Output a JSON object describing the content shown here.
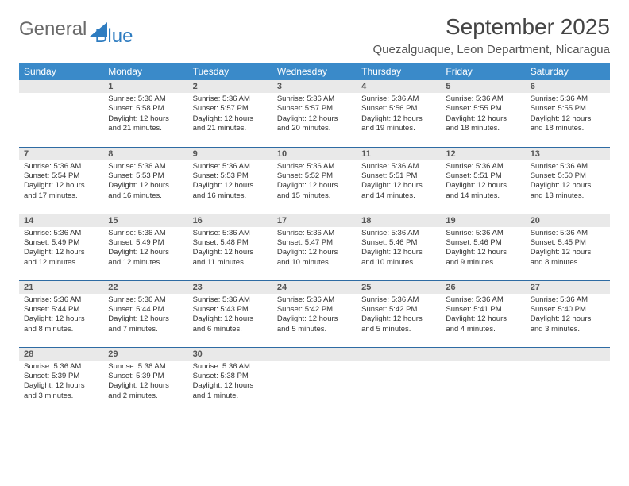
{
  "logo": {
    "text1": "General",
    "text2": "Blue"
  },
  "title": "September 2025",
  "location": "Quezalguaque, Leon Department, Nicaragua",
  "colors": {
    "header_bg": "#3a8ac9",
    "header_text": "#ffffff",
    "daynum_bg": "#e9e9e9",
    "row_border": "#2e6ba3",
    "logo_gray": "#6a6a6a",
    "logo_blue": "#2e7cc0"
  },
  "weekdays": [
    "Sunday",
    "Monday",
    "Tuesday",
    "Wednesday",
    "Thursday",
    "Friday",
    "Saturday"
  ],
  "weeks": [
    [
      {
        "blank": true
      },
      {
        "n": "1",
        "sunrise": "5:36 AM",
        "sunset": "5:58 PM",
        "daylight": "12 hours and 21 minutes."
      },
      {
        "n": "2",
        "sunrise": "5:36 AM",
        "sunset": "5:57 PM",
        "daylight": "12 hours and 21 minutes."
      },
      {
        "n": "3",
        "sunrise": "5:36 AM",
        "sunset": "5:57 PM",
        "daylight": "12 hours and 20 minutes."
      },
      {
        "n": "4",
        "sunrise": "5:36 AM",
        "sunset": "5:56 PM",
        "daylight": "12 hours and 19 minutes."
      },
      {
        "n": "5",
        "sunrise": "5:36 AM",
        "sunset": "5:55 PM",
        "daylight": "12 hours and 18 minutes."
      },
      {
        "n": "6",
        "sunrise": "5:36 AM",
        "sunset": "5:55 PM",
        "daylight": "12 hours and 18 minutes."
      }
    ],
    [
      {
        "n": "7",
        "sunrise": "5:36 AM",
        "sunset": "5:54 PM",
        "daylight": "12 hours and 17 minutes."
      },
      {
        "n": "8",
        "sunrise": "5:36 AM",
        "sunset": "5:53 PM",
        "daylight": "12 hours and 16 minutes."
      },
      {
        "n": "9",
        "sunrise": "5:36 AM",
        "sunset": "5:53 PM",
        "daylight": "12 hours and 16 minutes."
      },
      {
        "n": "10",
        "sunrise": "5:36 AM",
        "sunset": "5:52 PM",
        "daylight": "12 hours and 15 minutes."
      },
      {
        "n": "11",
        "sunrise": "5:36 AM",
        "sunset": "5:51 PM",
        "daylight": "12 hours and 14 minutes."
      },
      {
        "n": "12",
        "sunrise": "5:36 AM",
        "sunset": "5:51 PM",
        "daylight": "12 hours and 14 minutes."
      },
      {
        "n": "13",
        "sunrise": "5:36 AM",
        "sunset": "5:50 PM",
        "daylight": "12 hours and 13 minutes."
      }
    ],
    [
      {
        "n": "14",
        "sunrise": "5:36 AM",
        "sunset": "5:49 PM",
        "daylight": "12 hours and 12 minutes."
      },
      {
        "n": "15",
        "sunrise": "5:36 AM",
        "sunset": "5:49 PM",
        "daylight": "12 hours and 12 minutes."
      },
      {
        "n": "16",
        "sunrise": "5:36 AM",
        "sunset": "5:48 PM",
        "daylight": "12 hours and 11 minutes."
      },
      {
        "n": "17",
        "sunrise": "5:36 AM",
        "sunset": "5:47 PM",
        "daylight": "12 hours and 10 minutes."
      },
      {
        "n": "18",
        "sunrise": "5:36 AM",
        "sunset": "5:46 PM",
        "daylight": "12 hours and 10 minutes."
      },
      {
        "n": "19",
        "sunrise": "5:36 AM",
        "sunset": "5:46 PM",
        "daylight": "12 hours and 9 minutes."
      },
      {
        "n": "20",
        "sunrise": "5:36 AM",
        "sunset": "5:45 PM",
        "daylight": "12 hours and 8 minutes."
      }
    ],
    [
      {
        "n": "21",
        "sunrise": "5:36 AM",
        "sunset": "5:44 PM",
        "daylight": "12 hours and 8 minutes."
      },
      {
        "n": "22",
        "sunrise": "5:36 AM",
        "sunset": "5:44 PM",
        "daylight": "12 hours and 7 minutes."
      },
      {
        "n": "23",
        "sunrise": "5:36 AM",
        "sunset": "5:43 PM",
        "daylight": "12 hours and 6 minutes."
      },
      {
        "n": "24",
        "sunrise": "5:36 AM",
        "sunset": "5:42 PM",
        "daylight": "12 hours and 5 minutes."
      },
      {
        "n": "25",
        "sunrise": "5:36 AM",
        "sunset": "5:42 PM",
        "daylight": "12 hours and 5 minutes."
      },
      {
        "n": "26",
        "sunrise": "5:36 AM",
        "sunset": "5:41 PM",
        "daylight": "12 hours and 4 minutes."
      },
      {
        "n": "27",
        "sunrise": "5:36 AM",
        "sunset": "5:40 PM",
        "daylight": "12 hours and 3 minutes."
      }
    ],
    [
      {
        "n": "28",
        "sunrise": "5:36 AM",
        "sunset": "5:39 PM",
        "daylight": "12 hours and 3 minutes."
      },
      {
        "n": "29",
        "sunrise": "5:36 AM",
        "sunset": "5:39 PM",
        "daylight": "12 hours and 2 minutes."
      },
      {
        "n": "30",
        "sunrise": "5:36 AM",
        "sunset": "5:38 PM",
        "daylight": "12 hours and 1 minute."
      },
      {
        "blank": true
      },
      {
        "blank": true
      },
      {
        "blank": true
      },
      {
        "blank": true
      }
    ]
  ],
  "labels": {
    "sunrise": "Sunrise:",
    "sunset": "Sunset:",
    "daylight": "Daylight:"
  }
}
